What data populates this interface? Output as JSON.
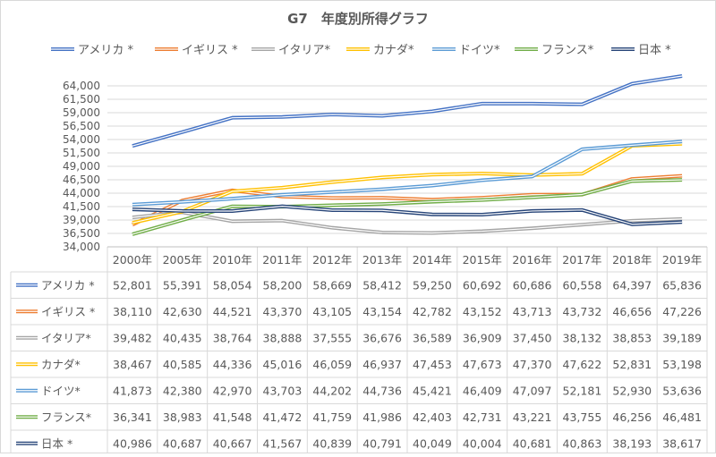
{
  "chart_data": {
    "type": "line",
    "title": "G7　年度別所得グラフ",
    "categories": [
      "2000年",
      "2005年",
      "2010年",
      "2011年",
      "2012年",
      "2013年",
      "2014年",
      "2015年",
      "2016年",
      "2017年",
      "2018年",
      "2019年"
    ],
    "y_ticks": [
      "64,000",
      "61,500",
      "59,000",
      "56,500",
      "54,000",
      "51,500",
      "49,000",
      "46,500",
      "44,000",
      "41,500",
      "39,000",
      "36,500",
      "34,000"
    ],
    "ylim": [
      34000,
      65000
    ],
    "grid": true,
    "legend_position": "top",
    "has_data_table": true,
    "series": [
      {
        "name": "アメリカ *",
        "color": "#4472c4",
        "values": [
          52801,
          55391,
          58054,
          58200,
          58669,
          58412,
          59250,
          60692,
          60686,
          60558,
          64397,
          65836
        ],
        "labels": [
          "52,801",
          "55,391",
          "58,054",
          "58,200",
          "58,669",
          "58,412",
          "59,250",
          "60,692",
          "60,686",
          "60,558",
          "64,397",
          "65,836"
        ]
      },
      {
        "name": "イギリス *",
        "color": "#ed7d31",
        "values": [
          38110,
          42630,
          44521,
          43370,
          43105,
          43154,
          42782,
          43152,
          43713,
          43732,
          46656,
          47226
        ],
        "labels": [
          "38,110",
          "42,630",
          "44,521",
          "43,370",
          "43,105",
          "43,154",
          "42,782",
          "43,152",
          "43,713",
          "43,732",
          "46,656",
          "47,226"
        ]
      },
      {
        "name": "イタリア*",
        "color": "#a5a5a5",
        "values": [
          39482,
          40435,
          38764,
          38888,
          37555,
          36676,
          36589,
          36909,
          37450,
          38132,
          38853,
          39189
        ],
        "labels": [
          "39,482",
          "40,435",
          "38,764",
          "38,888",
          "37,555",
          "36,676",
          "36,589",
          "36,909",
          "37,450",
          "38,132",
          "38,853",
          "39,189"
        ]
      },
      {
        "name": "カナダ*",
        "color": "#ffc000",
        "values": [
          38467,
          40585,
          44336,
          45016,
          46059,
          46937,
          47453,
          47673,
          47370,
          47622,
          52831,
          53198
        ],
        "labels": [
          "38,467",
          "40,585",
          "44,336",
          "45,016",
          "46,059",
          "46,937",
          "47,453",
          "47,673",
          "47,370",
          "47,622",
          "52,831",
          "53,198"
        ]
      },
      {
        "name": "ドイツ*",
        "color": "#5b9bd5",
        "values": [
          41873,
          42380,
          42970,
          43703,
          44202,
          44736,
          45421,
          46409,
          47097,
          52181,
          52930,
          53636
        ],
        "labels": [
          "41,873",
          "42,380",
          "42,970",
          "43,703",
          "44,202",
          "44,736",
          "45,421",
          "46,409",
          "47,097",
          "52,181",
          "52,930",
          "53,636"
        ]
      },
      {
        "name": "フランス*",
        "color": "#70ad47",
        "values": [
          36341,
          38983,
          41548,
          41472,
          41759,
          41986,
          42403,
          42731,
          43221,
          43755,
          46256,
          46481
        ],
        "labels": [
          "36,341",
          "38,983",
          "41,548",
          "41,472",
          "41,759",
          "41,986",
          "42,403",
          "42,731",
          "43,221",
          "43,755",
          "46,256",
          "46,481"
        ]
      },
      {
        "name": "日本 *",
        "color": "#264478",
        "values": [
          40986,
          40687,
          40667,
          41567,
          40839,
          40791,
          40049,
          40004,
          40681,
          40863,
          38193,
          38617
        ],
        "labels": [
          "40,986",
          "40,687",
          "40,667",
          "41,567",
          "40,839",
          "40,791",
          "40,049",
          "40,004",
          "40,681",
          "40,863",
          "38,193",
          "38,617"
        ]
      }
    ]
  }
}
